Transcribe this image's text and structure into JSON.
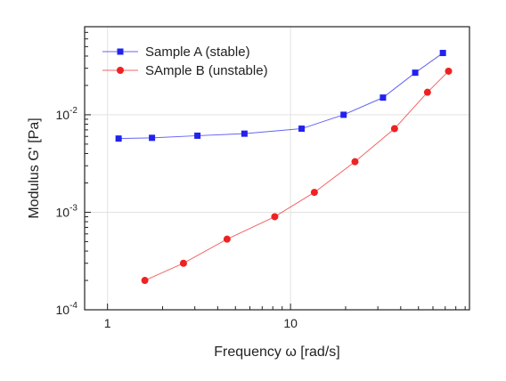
{
  "chart_data": {
    "type": "line",
    "title": "",
    "xlabel": "Frequency ω [rad/s]",
    "ylabel": "Modulus G' [Pa]",
    "x_scale": "log",
    "y_scale": "log",
    "xlim": [
      0.75,
      95
    ],
    "ylim": [
      0.0001,
      0.08
    ],
    "grid": true,
    "legend_position": "top-left",
    "x_ticks": [
      {
        "value": 1,
        "label": "1"
      },
      {
        "value": 10,
        "label": "10"
      }
    ],
    "y_ticks": [
      {
        "value": 0.0001,
        "mantissa": "10",
        "exp": "-4"
      },
      {
        "value": 0.001,
        "mantissa": "10",
        "exp": "-3"
      },
      {
        "value": 0.01,
        "mantissa": "10",
        "exp": "-2"
      }
    ],
    "series": [
      {
        "name": "Sample A (stable)",
        "color": "#2222ee",
        "marker": "square",
        "x": [
          1.15,
          1.75,
          3.1,
          5.6,
          11.5,
          19.5,
          32,
          48,
          68
        ],
        "y": [
          0.0057,
          0.0058,
          0.0061,
          0.0064,
          0.0072,
          0.01,
          0.015,
          0.027,
          0.043
        ]
      },
      {
        "name": "SAmple B (unstable)",
        "color": "#ee2222",
        "marker": "circle",
        "x": [
          1.6,
          2.6,
          4.5,
          8.2,
          13.5,
          22.5,
          37,
          56,
          73
        ],
        "y": [
          0.0002,
          0.0003,
          0.00053,
          0.0009,
          0.0016,
          0.0033,
          0.0072,
          0.017,
          0.028
        ]
      }
    ]
  }
}
